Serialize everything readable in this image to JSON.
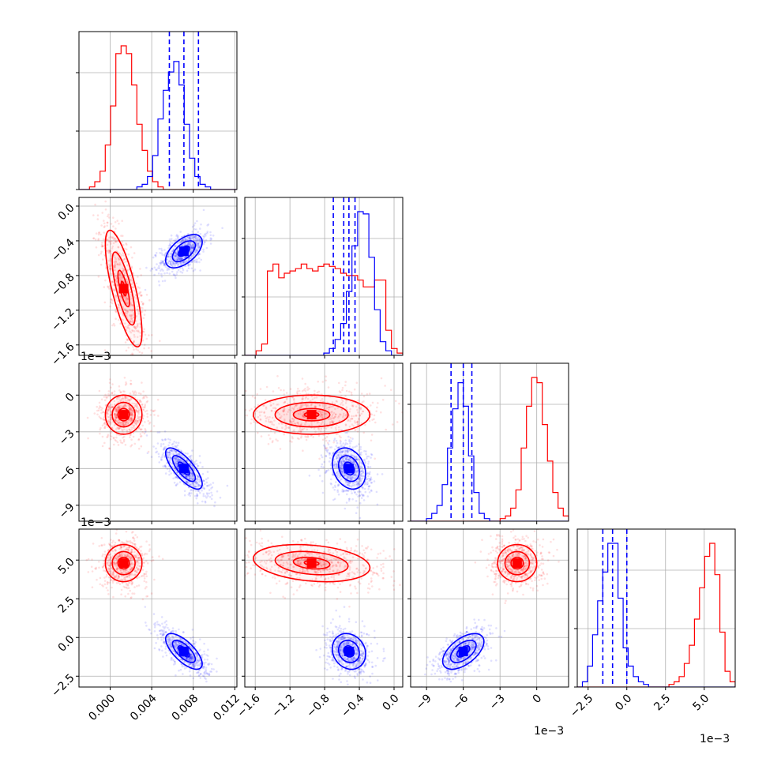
{
  "chart_data": {
    "type": "corner",
    "colors": {
      "red": "#ff0000",
      "blue": "#0000ff"
    },
    "params": [
      {
        "range": [
          -0.003,
          0.0122
        ],
        "ticks": [
          0.0,
          0.004,
          0.008,
          0.012
        ],
        "tick_labels": [
          "0.000",
          "0.004",
          "0.008",
          "0.012"
        ],
        "offset": ""
      },
      {
        "range": [
          -1.72,
          0.1
        ],
        "ticks": [
          -1.6,
          -1.2,
          -0.8,
          -0.4,
          0.0
        ],
        "tick_labels": [
          "−1.6",
          "−1.2",
          "−0.8",
          "−0.4",
          "0.0"
        ],
        "offset": "1e−3"
      },
      {
        "range": [
          -10.3,
          2.6
        ],
        "ticks": [
          -9,
          -6,
          -3,
          0
        ],
        "tick_labels": [
          "−9",
          "−6",
          "−3",
          "0"
        ],
        "offset": "1e−3"
      },
      {
        "range": [
          -3.2,
          7.0
        ],
        "ticks": [
          -2.5,
          0.0,
          2.5,
          5.0
        ],
        "tick_labels": [
          "−2.5",
          "0.0",
          "2.5",
          "5.0"
        ],
        "offset": "1e−3"
      }
    ],
    "red": {
      "means": [
        0.0013,
        -0.95,
        -1.6,
        4.8
      ],
      "sds": [
        0.0011,
        0.42,
        1.0,
        0.75
      ],
      "rho": [
        [
          1,
          -0.75,
          0.0,
          0.0
        ],
        [
          -0.75,
          1,
          0.0,
          -0.25
        ],
        [
          0.0,
          0.0,
          1,
          0.0
        ],
        [
          0.0,
          -0.25,
          0.0,
          1
        ]
      ],
      "hist": [
        [
          0,
          0,
          1,
          3,
          7,
          17,
          32,
          52,
          55,
          52,
          40,
          25,
          15,
          7,
          3,
          1,
          0,
          0,
          0,
          0,
          0,
          0,
          0,
          0,
          0,
          0,
          0,
          0,
          0,
          0
        ],
        [
          0,
          0,
          2,
          5,
          37,
          40,
          34,
          36,
          37,
          38,
          40,
          38,
          37,
          39,
          40,
          39,
          38,
          36,
          35,
          35,
          33,
          30,
          30,
          33,
          33,
          11,
          3,
          1
        ],
        [
          0,
          0,
          0,
          0,
          0,
          0,
          0,
          0,
          0,
          0,
          0,
          0,
          0,
          0,
          0,
          0,
          0,
          1,
          2,
          5,
          12,
          28,
          44,
          55,
          53,
          37,
          23,
          11,
          5,
          2
        ],
        [
          0,
          0,
          0,
          0,
          0,
          0,
          0,
          0,
          0,
          0,
          0,
          0,
          0,
          0,
          0,
          0,
          0,
          0,
          1,
          2,
          4,
          9,
          16,
          26,
          38,
          50,
          55,
          43,
          21,
          6,
          2
        ]
      ]
    },
    "blue": {
      "means": [
        0.0071,
        -0.52,
        -6.0,
        -0.9
      ],
      "sds": [
        0.0011,
        0.12,
        1.05,
        0.72
      ],
      "rho": [
        [
          1,
          0.55,
          -0.75,
          -0.7
        ],
        [
          0.55,
          1,
          -0.25,
          -0.15
        ],
        [
          -0.75,
          -0.25,
          1,
          0.55
        ],
        [
          -0.7,
          -0.15,
          0.55,
          1
        ]
      ],
      "hist": [
        [
          0,
          0,
          0,
          0,
          0,
          0,
          0,
          0,
          0,
          0,
          0,
          1,
          2,
          5,
          13,
          27,
          38,
          45,
          49,
          40,
          25,
          12,
          5,
          2,
          1,
          0,
          0,
          0,
          0,
          0
        ],
        [
          0,
          0,
          0,
          0,
          0,
          0,
          0,
          0,
          0,
          0,
          0,
          0,
          0,
          0,
          1,
          3,
          7,
          14,
          28,
          48,
          63,
          62,
          43,
          20,
          6,
          2,
          0,
          0
        ],
        [
          0,
          0,
          0,
          1,
          3,
          6,
          14,
          28,
          43,
          53,
          44,
          25,
          11,
          3,
          1,
          0,
          0,
          0,
          0,
          0,
          0,
          0,
          0,
          0,
          0,
          0,
          0,
          0,
          0,
          0
        ],
        [
          0,
          2,
          8,
          20,
          33,
          44,
          55,
          55,
          34,
          15,
          8,
          4,
          2,
          1,
          0,
          0,
          0,
          0,
          0,
          0,
          0,
          0,
          0,
          0,
          0,
          0,
          0,
          0,
          0,
          0,
          0
        ]
      ],
      "quantiles": [
        [
          0.0057,
          0.0071,
          0.0085
        ],
        [
          -0.7,
          -0.58,
          -0.52,
          -0.45
        ],
        [
          -7.0,
          -6.0,
          -5.3
        ],
        [
          -1.55,
          -0.92,
          0.0
        ]
      ]
    },
    "grid": true,
    "contour_levels": [
      0.2,
      0.5,
      1.0,
      1.6
    ]
  }
}
